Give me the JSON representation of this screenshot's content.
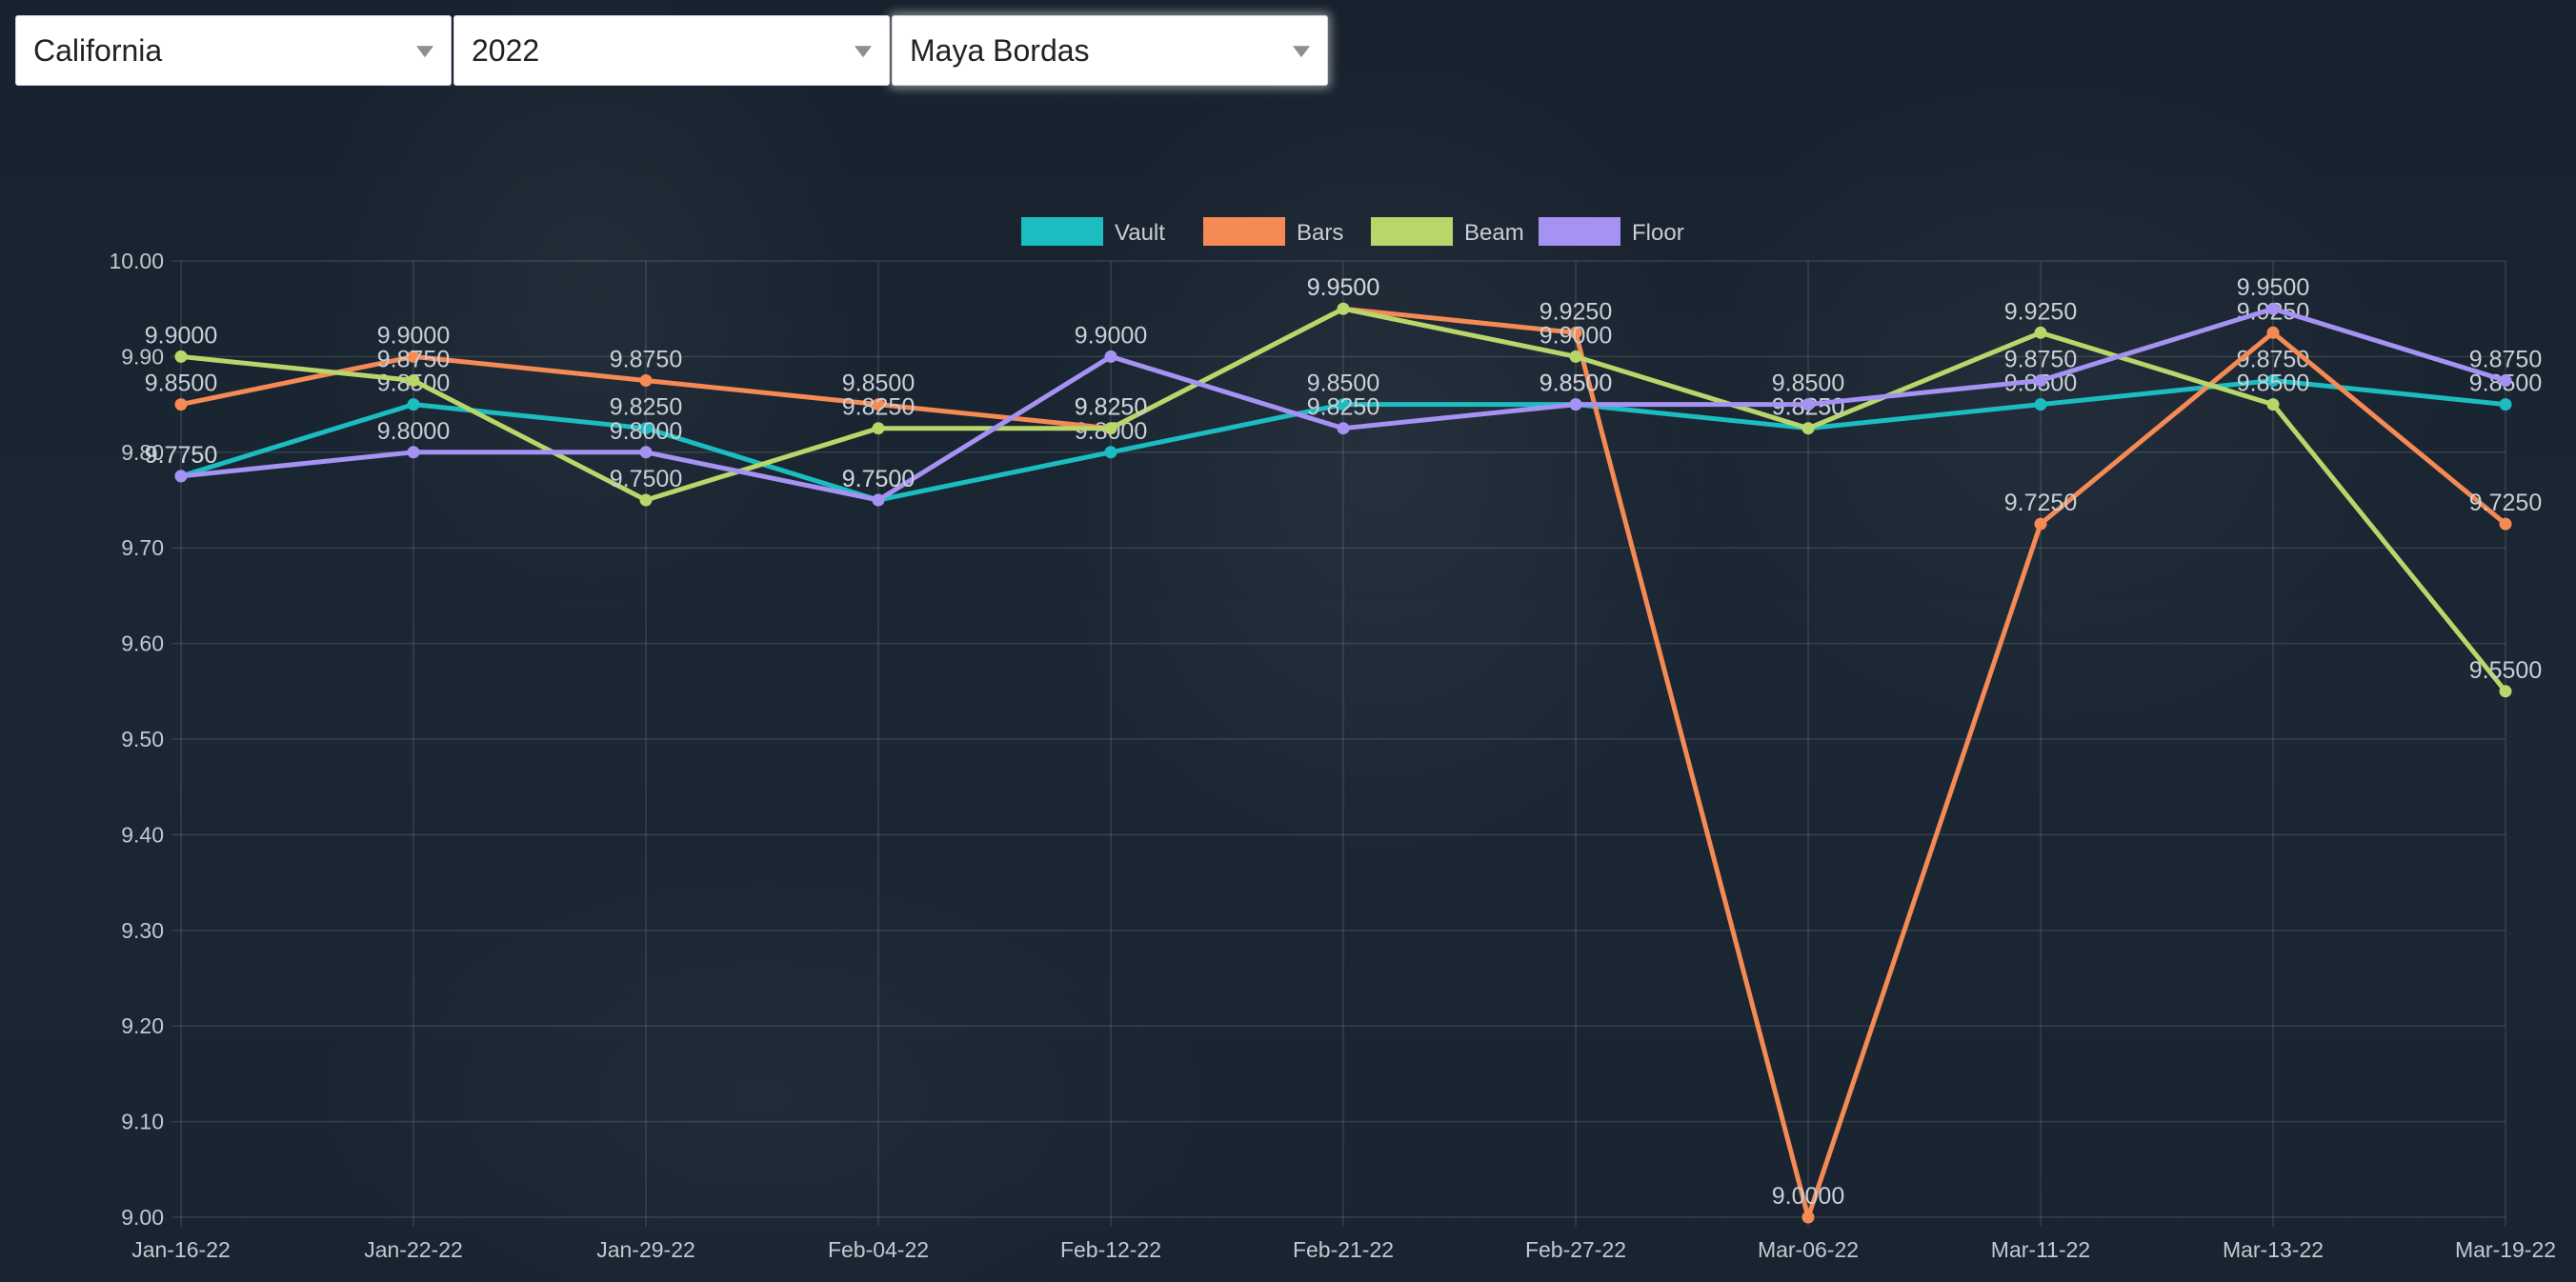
{
  "filters": {
    "state": "California",
    "year": "2022",
    "gymnast": "Maya Bordas"
  },
  "chart_data": {
    "type": "line",
    "categories": [
      "Jan-16-22",
      "Jan-22-22",
      "Jan-29-22",
      "Feb-04-22",
      "Feb-12-22",
      "Feb-21-22",
      "Feb-27-22",
      "Mar-06-22",
      "Mar-11-22",
      "Mar-13-22",
      "Mar-19-22"
    ],
    "ylim": [
      9.0,
      10.0
    ],
    "yticks": [
      "9.00",
      "9.10",
      "9.20",
      "9.30",
      "9.40",
      "9.50",
      "9.60",
      "9.70",
      "9.80",
      "9.90",
      "10.00"
    ],
    "grid": true,
    "legend_position": "top-center",
    "data_label_format": "4 decimals",
    "series": [
      {
        "name": "Vault",
        "color": "#1bbdc1",
        "values": [
          9.775,
          9.85,
          9.825,
          9.75,
          9.8,
          9.85,
          9.85,
          9.825,
          9.85,
          9.875,
          9.85
        ]
      },
      {
        "name": "Bars",
        "color": "#f58a55",
        "values": [
          9.85,
          9.9,
          9.875,
          9.85,
          9.825,
          9.95,
          9.925,
          9.0,
          9.725,
          9.925,
          9.725
        ]
      },
      {
        "name": "Beam",
        "color": "#b8d66a",
        "values": [
          9.9,
          9.875,
          9.75,
          9.825,
          9.825,
          9.95,
          9.9,
          9.825,
          9.925,
          9.85,
          9.55
        ]
      },
      {
        "name": "Floor",
        "color": "#a692f2",
        "values": [
          9.775,
          9.8,
          9.8,
          9.75,
          9.9,
          9.825,
          9.85,
          9.85,
          9.875,
          9.95,
          9.875
        ]
      }
    ]
  }
}
